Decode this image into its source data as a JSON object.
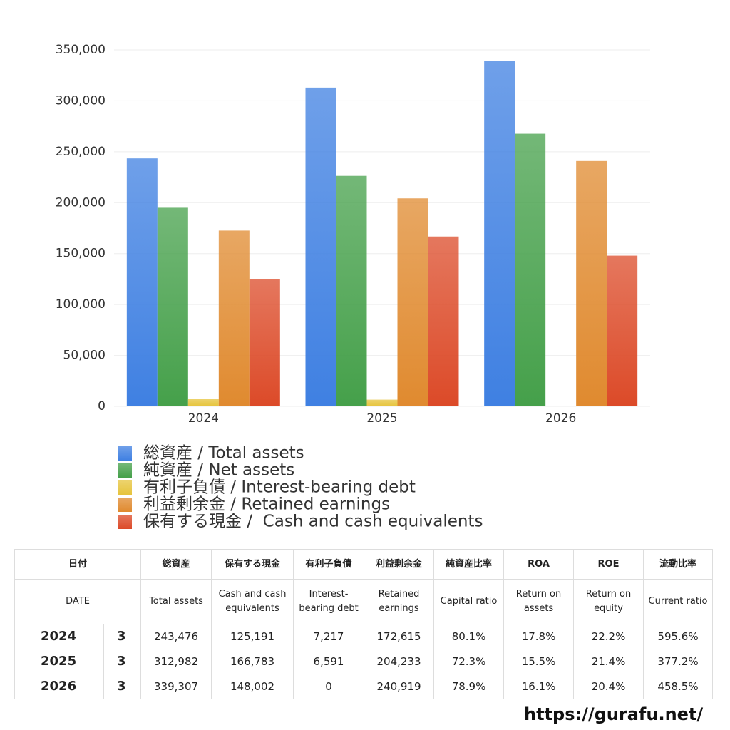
{
  "chart_data": {
    "type": "bar",
    "categories": [
      "2024",
      "2025",
      "2026"
    ],
    "series": [
      {
        "name": "総資産 / Total assets",
        "color": "#3f80e2",
        "values": [
          243476,
          312982,
          339307
        ]
      },
      {
        "name": "純資産 / Net assets",
        "color": "#45a04a",
        "values": [
          195000,
          226300,
          267700
        ]
      },
      {
        "name": "有利子負債 / Interest-bearing debt",
        "color": "#e6c43c",
        "values": [
          7217,
          6591,
          0
        ]
      },
      {
        "name": "利益剰余金 / Retained earnings",
        "color": "#e08a2f",
        "values": [
          172615,
          204233,
          240919
        ]
      },
      {
        "name": "保有する現金 /  Cash and cash equivalents",
        "color": "#dc4a28",
        "values": [
          125191,
          166783,
          148002
        ]
      }
    ],
    "ylim": [
      0,
      350000
    ],
    "yticks": [
      {
        "value": 0,
        "label": "0"
      },
      {
        "value": 50000,
        "label": "50,000"
      },
      {
        "value": 100000,
        "label": "100,000"
      },
      {
        "value": 150000,
        "label": "150,000"
      },
      {
        "value": 200000,
        "label": "200,000"
      },
      {
        "value": 250000,
        "label": "250,000"
      },
      {
        "value": 300000,
        "label": "300,000"
      },
      {
        "value": 350000,
        "label": "350,000"
      }
    ],
    "grid": true
  },
  "table": {
    "header": [
      [
        "日付",
        "総資産",
        "保有する現金",
        "有利子負債",
        "利益剰余金",
        "純資産比率",
        "ROA",
        "ROE",
        "流動比率"
      ],
      [
        "DATE",
        "Total assets",
        "Cash and cash equivalents",
        "Interest-bearing debt",
        "Retained earnings",
        "Capital ratio",
        "Return on assets",
        "Return on equity",
        "Current ratio"
      ]
    ],
    "rows": [
      [
        "2024",
        "3",
        "243,476",
        "125,191",
        "7,217",
        "172,615",
        "80.1%",
        "17.8%",
        "22.2%",
        "595.6%"
      ],
      [
        "2025",
        "3",
        "312,982",
        "166,783",
        "6,591",
        "204,233",
        "72.3%",
        "15.5%",
        "21.4%",
        "377.2%"
      ],
      [
        "2026",
        "3",
        "339,307",
        "148,002",
        "0",
        "240,919",
        "78.9%",
        "16.1%",
        "20.4%",
        "458.5%"
      ]
    ]
  },
  "footer": "https://gurafu.net/"
}
